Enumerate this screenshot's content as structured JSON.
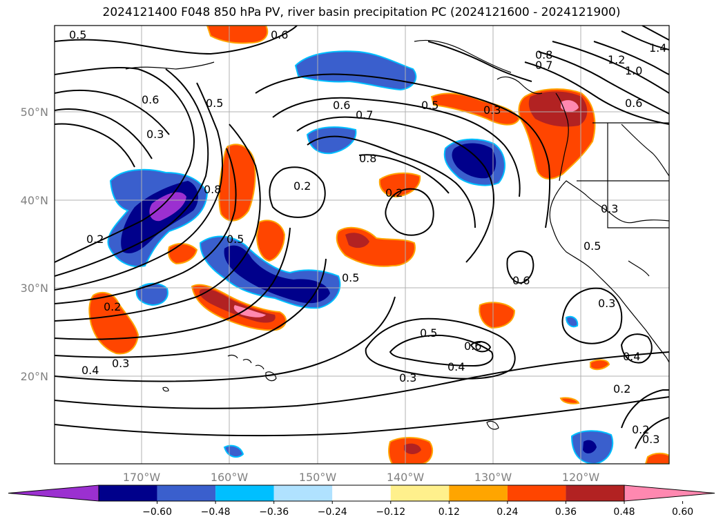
{
  "title": "2024121400 F048 850 hPa PV, river basin precipitation PC (2024121600 - 2024121900)",
  "lat_ticks": [
    "50°N",
    "40°N",
    "30°N",
    "20°N"
  ],
  "lon_ticks": [
    "170°W",
    "160°W",
    "150°W",
    "140°W",
    "130°W",
    "120°W"
  ],
  "colorbar": {
    "labels": [
      "−0.60",
      "−0.48",
      "−0.36",
      "−0.24",
      "−0.12",
      "0.12",
      "0.24",
      "0.36",
      "0.48",
      "0.60"
    ],
    "colors": [
      "#9b30d0",
      "#00008b",
      "#3a5fcd",
      "#00bfff",
      "#b0e2ff",
      "#ffffff",
      "#fff08c",
      "#ffa500",
      "#ff4500",
      "#b22222",
      "#ff88b0"
    ]
  },
  "contour_labels": [
    "0.5",
    "0.6",
    "0.6",
    "0.5",
    "0.3",
    "0.6",
    "0.7",
    "0.5",
    "0.3",
    "0.8",
    "1.2",
    "1.0",
    "1.4",
    "0.7",
    "0.8",
    "0.6",
    "0.2",
    "0.8",
    "0.2",
    "0.2",
    "0.5",
    "0.5",
    "0.2",
    "0.4",
    "0.3",
    "0.5",
    "0.6",
    "0.4",
    "0.3",
    "0.6",
    "0.3",
    "0.5",
    "0.3",
    "0.4",
    "0.2",
    "0.2",
    "0.3"
  ]
}
